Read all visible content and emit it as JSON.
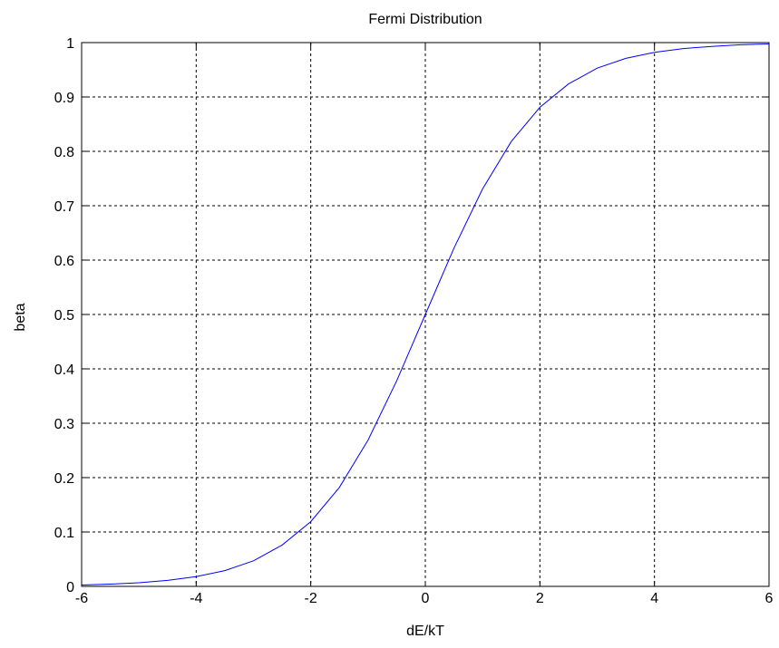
{
  "chart_data": {
    "type": "line",
    "title": "Fermi Distribution",
    "xlabel": "dE/kT",
    "ylabel": "beta",
    "xlim": [
      -6,
      6
    ],
    "ylim": [
      0,
      1
    ],
    "grid": true,
    "x_ticks": [
      -6,
      -4,
      -2,
      0,
      2,
      4,
      6
    ],
    "x_tick_labels": [
      "-6",
      "-4",
      "-2",
      "0",
      "2",
      "4",
      "6"
    ],
    "y_ticks": [
      0,
      0.1,
      0.2,
      0.3,
      0.4,
      0.5,
      0.6,
      0.7,
      0.8,
      0.9,
      1
    ],
    "y_tick_labels": [
      "0",
      "0.1",
      "0.2",
      "0.3",
      "0.4",
      "0.5",
      "0.6",
      "0.7",
      "0.8",
      "0.9",
      "1"
    ],
    "series": [
      {
        "color": "#0000ff",
        "x": [
          -6,
          -5.5,
          -5,
          -4.5,
          -4,
          -3.5,
          -3,
          -2.5,
          -2,
          -1.5,
          -1,
          -0.5,
          0,
          0.5,
          1,
          1.5,
          2,
          2.5,
          3,
          3.5,
          4,
          4.5,
          5,
          5.5,
          6
        ],
        "y": [
          0.0025,
          0.0041,
          0.0067,
          0.011,
          0.018,
          0.029,
          0.047,
          0.076,
          0.119,
          0.182,
          0.269,
          0.378,
          0.5,
          0.622,
          0.731,
          0.818,
          0.881,
          0.924,
          0.953,
          0.971,
          0.982,
          0.989,
          0.993,
          0.996,
          0.9975
        ]
      }
    ]
  }
}
